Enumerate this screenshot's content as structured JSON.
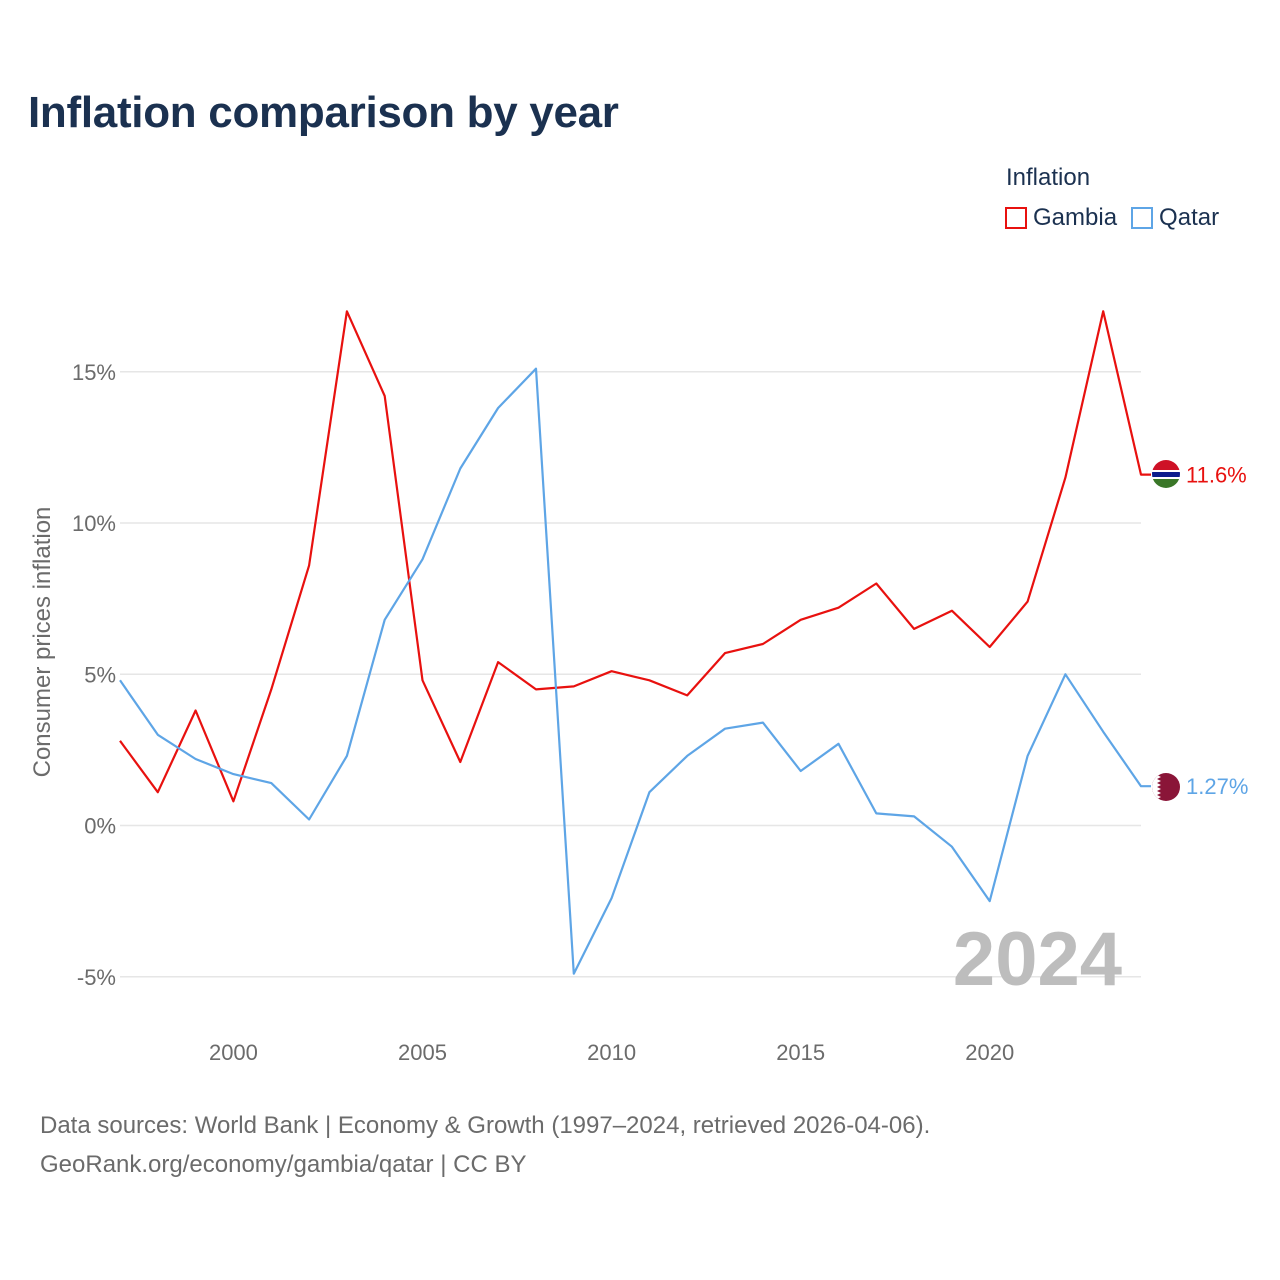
{
  "title": "Inflation comparison by year",
  "legend": {
    "title": "Inflation",
    "items": [
      {
        "name": "Gambia",
        "color": "#e8110f"
      },
      {
        "name": "Qatar",
        "color": "#5ea5e6"
      }
    ]
  },
  "footer": {
    "line1": "Data sources: World Bank | Economy & Growth (1997–2024, retrieved 2026-04-06).",
    "line2": "GeoRank.org/economy/gambia/qatar | CC BY"
  },
  "chart_data": {
    "type": "line",
    "title": "Inflation comparison by year",
    "xlabel": "",
    "ylabel": "Consumer prices inflation",
    "watermark_year": "2024",
    "xlim": [
      1997,
      2024
    ],
    "ylim": [
      -6.5,
      19
    ],
    "x_ticks": [
      2000,
      2005,
      2010,
      2015,
      2020
    ],
    "y_ticks": [
      {
        "value": -5,
        "label": "-5%"
      },
      {
        "value": 0,
        "label": "0%"
      },
      {
        "value": 5,
        "label": "5%"
      },
      {
        "value": 10,
        "label": "10%"
      },
      {
        "value": 15,
        "label": "15%"
      }
    ],
    "grid": true,
    "x": [
      1997,
      1998,
      1999,
      2000,
      2001,
      2002,
      2003,
      2004,
      2005,
      2006,
      2007,
      2008,
      2009,
      2010,
      2011,
      2012,
      2013,
      2014,
      2015,
      2016,
      2017,
      2018,
      2019,
      2020,
      2021,
      2022,
      2023,
      2024
    ],
    "series": [
      {
        "name": "Gambia",
        "color": "#e8110f",
        "end_label": "11.6%",
        "values": [
          2.8,
          1.1,
          3.8,
          0.8,
          4.5,
          8.6,
          17.0,
          14.2,
          4.8,
          2.1,
          5.4,
          4.5,
          4.6,
          5.1,
          4.8,
          4.3,
          5.7,
          6.0,
          6.8,
          7.2,
          8.0,
          6.5,
          7.1,
          5.9,
          7.4,
          11.5,
          17.0,
          11.6
        ]
      },
      {
        "name": "Qatar",
        "color": "#5ea5e6",
        "end_label": "1.27%",
        "values": [
          4.8,
          3.0,
          2.2,
          1.7,
          1.4,
          0.2,
          2.3,
          6.8,
          8.8,
          11.8,
          13.8,
          15.1,
          -4.9,
          -2.4,
          1.1,
          2.3,
          3.2,
          3.4,
          1.8,
          2.7,
          0.4,
          0.3,
          -0.7,
          -2.5,
          2.3,
          5.0,
          3.1,
          1.3
        ]
      }
    ]
  }
}
